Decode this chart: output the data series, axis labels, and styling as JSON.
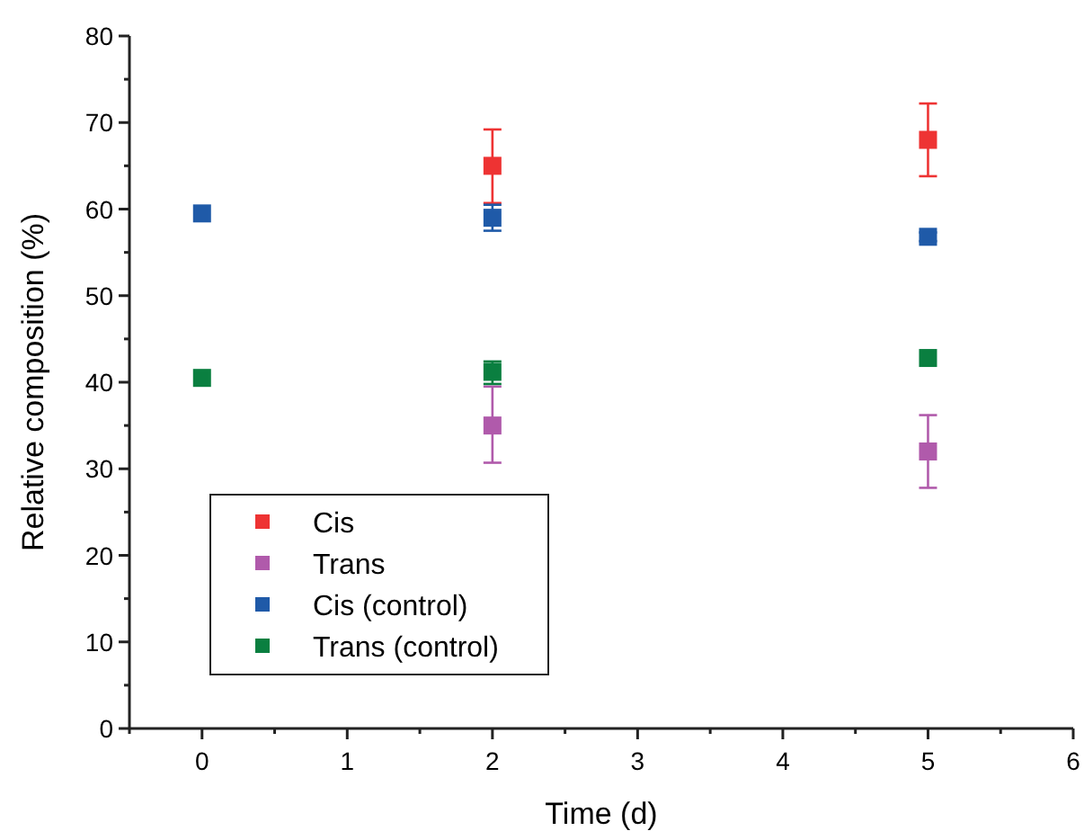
{
  "chart_data": {
    "type": "scatter",
    "xlabel": "Time (d)",
    "ylabel": "Relative composition (%)",
    "xlim": [
      -0.5,
      6
    ],
    "ylim": [
      0,
      80
    ],
    "xticks": [
      {
        "value": -0.5,
        "label": null
      },
      0,
      {
        "value": 0.5,
        "label": null
      },
      1,
      {
        "value": 1.5,
        "label": null
      },
      2,
      {
        "value": 2.5,
        "label": null
      },
      3,
      {
        "value": 3.5,
        "label": null
      },
      4,
      {
        "value": 4.5,
        "label": null
      },
      5,
      {
        "value": 5.5,
        "label": null
      },
      6
    ],
    "yticks": [
      0,
      {
        "value": 5,
        "label": null
      },
      10,
      {
        "value": 15,
        "label": null
      },
      20,
      {
        "value": 25,
        "label": null
      },
      30,
      {
        "value": 35,
        "label": null
      },
      40,
      {
        "value": 45,
        "label": null
      },
      50,
      {
        "value": 55,
        "label": null
      },
      60,
      {
        "value": 65,
        "label": null
      },
      70,
      {
        "value": 75,
        "label": null
      },
      80
    ],
    "marker": "square",
    "legend": "bottom left",
    "grid": false,
    "series": [
      {
        "name": "Cis",
        "color": "#ee3333",
        "x": [
          2,
          5
        ],
        "values": [
          65,
          68
        ],
        "errors": [
          [
            60.7,
            69.2
          ],
          [
            63.8,
            72.2
          ]
        ]
      },
      {
        "name": "Trans",
        "color": "#b05aab",
        "x": [
          2,
          5
        ],
        "values": [
          35,
          32
        ],
        "errors": [
          [
            30.7,
            39.5
          ],
          [
            27.8,
            36.2
          ]
        ]
      },
      {
        "name": "Cis (control)",
        "color": "#1f5aa8",
        "x": [
          0,
          2,
          5
        ],
        "values": [
          59.5,
          59,
          56.8
        ],
        "errors": [
          null,
          [
            57.5,
            60.5
          ],
          [
            56.3,
            57.3
          ]
        ]
      },
      {
        "name": "Trans (control)",
        "color": "#0a7f40",
        "x": [
          0,
          2,
          5
        ],
        "values": [
          40.5,
          41.2,
          42.8
        ],
        "errors": [
          null,
          [
            39.8,
            42.4
          ],
          null
        ]
      }
    ]
  }
}
